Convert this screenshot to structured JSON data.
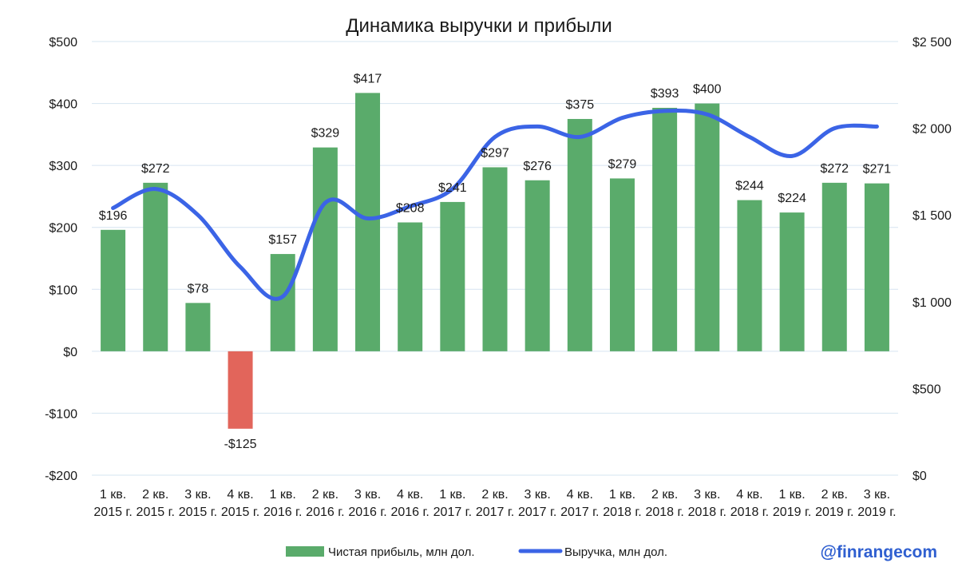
{
  "chart_data": {
    "type": "bar+line",
    "title": "Динамика выручки и прибыли",
    "categories": [
      [
        "1 кв.",
        "2015 г."
      ],
      [
        "2 кв.",
        "2015 г."
      ],
      [
        "3 кв.",
        "2015 г."
      ],
      [
        "4 кв.",
        "2015 г."
      ],
      [
        "1 кв.",
        "2016 г."
      ],
      [
        "2 кв.",
        "2016 г."
      ],
      [
        "3 кв.",
        "2016 г."
      ],
      [
        "4 кв.",
        "2016 г."
      ],
      [
        "1 кв.",
        "2017 г."
      ],
      [
        "2 кв.",
        "2017 г."
      ],
      [
        "3 кв.",
        "2017 г."
      ],
      [
        "4 кв.",
        "2017 г."
      ],
      [
        "1 кв.",
        "2018 г."
      ],
      [
        "2 кв.",
        "2018 г."
      ],
      [
        "3 кв.",
        "2018 г."
      ],
      [
        "4 кв.",
        "2018 г."
      ],
      [
        "1 кв.",
        "2019 г."
      ],
      [
        "2 кв.",
        "2019 г."
      ],
      [
        "3 кв.",
        "2019 г."
      ]
    ],
    "series": [
      {
        "name": "Чистая прибыль, млн дол.",
        "type": "bar",
        "axis": "left",
        "color": "#5aab6b",
        "negative_color": "#e2655b",
        "values": [
          196,
          272,
          78,
          -125,
          157,
          329,
          417,
          208,
          241,
          297,
          276,
          375,
          279,
          393,
          400,
          244,
          224,
          272,
          271
        ],
        "labels": [
          "$196",
          "$272",
          "$78",
          "-$125",
          "$157",
          "$329",
          "$417",
          "$208",
          "$241",
          "$297",
          "$276",
          "$375",
          "$279",
          "$393",
          "$400",
          "$244",
          "$224",
          "$272",
          "$271"
        ]
      },
      {
        "name": "Выручка, млн дол.",
        "type": "line",
        "axis": "right",
        "color": "#3b64e6",
        "values": [
          1540,
          1650,
          1500,
          1200,
          1030,
          1570,
          1480,
          1550,
          1650,
          1950,
          2010,
          1950,
          2060,
          2100,
          2080,
          1950,
          1840,
          2000,
          2010
        ]
      }
    ],
    "y_left": {
      "min": -200,
      "max": 500,
      "ticks": [
        500,
        400,
        300,
        200,
        100,
        0,
        -100,
        -200
      ],
      "tick_labels": [
        "$500",
        "$400",
        "$300",
        "$200",
        "$100",
        "$0",
        "-$100",
        "-$200"
      ]
    },
    "y_right": {
      "min": 0,
      "max": 2500,
      "ticks": [
        2500,
        2000,
        1500,
        1000,
        500,
        0
      ],
      "tick_labels": [
        "$2 500",
        "$2 000",
        "$1 500",
        "$1 000",
        "$500",
        "$0"
      ]
    },
    "grid": true,
    "legend": "bottom"
  },
  "watermark": "@finrangecom"
}
